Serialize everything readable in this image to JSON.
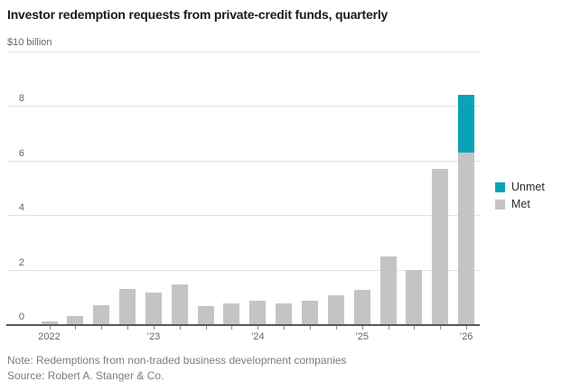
{
  "header": {
    "title": "Investor redemption requests from private-credit funds, quarterly"
  },
  "chart_data": {
    "type": "bar",
    "stacked": true,
    "title": "Investor redemption requests from private-credit funds, quarterly",
    "unit_label": "$10 billion",
    "categories": [
      "2022 Q1",
      "2022 Q2",
      "2022 Q3",
      "2022 Q4",
      "2023 Q1",
      "2023 Q2",
      "2023 Q3",
      "2023 Q4",
      "2024 Q1",
      "2024 Q2",
      "2024 Q3",
      "2024 Q4",
      "2025 Q1",
      "2025 Q2",
      "2025 Q3",
      "2025 Q4",
      "2026 Q1"
    ],
    "series": [
      {
        "name": "Met",
        "color": "#c4c4c4",
        "values": [
          0.1,
          0.3,
          0.7,
          1.3,
          1.15,
          1.45,
          0.65,
          0.75,
          0.85,
          0.75,
          0.85,
          1.05,
          1.25,
          2.5,
          2.0,
          5.7,
          6.3
        ]
      },
      {
        "name": "Unmet",
        "color": "#0aa3b5",
        "values": [
          0,
          0,
          0,
          0,
          0,
          0,
          0,
          0,
          0,
          0,
          0,
          0,
          0,
          0,
          0,
          0,
          2.1
        ]
      }
    ],
    "legend": [
      {
        "label": "Unmet",
        "color": "#0aa3b5"
      },
      {
        "label": "Met",
        "color": "#c4c4c4"
      }
    ],
    "legend_position": "right",
    "ylim": [
      0,
      10
    ],
    "yticks": [
      0,
      2,
      4,
      6,
      8
    ],
    "top_gridline_value": 10,
    "grid": true,
    "x_year_labels": [
      {
        "index": 0,
        "label": "2022"
      },
      {
        "index": 4,
        "label": "’23"
      },
      {
        "index": 8,
        "label": "’24"
      },
      {
        "index": 12,
        "label": "’25"
      },
      {
        "index": 16,
        "label": "’26"
      }
    ],
    "axis_color": "#57585a",
    "gridline_color": "#e2e2e2"
  },
  "footer": {
    "note": "Note: Redemptions from non-traded business development companies",
    "source": "Source: Robert A. Stanger & Co."
  }
}
